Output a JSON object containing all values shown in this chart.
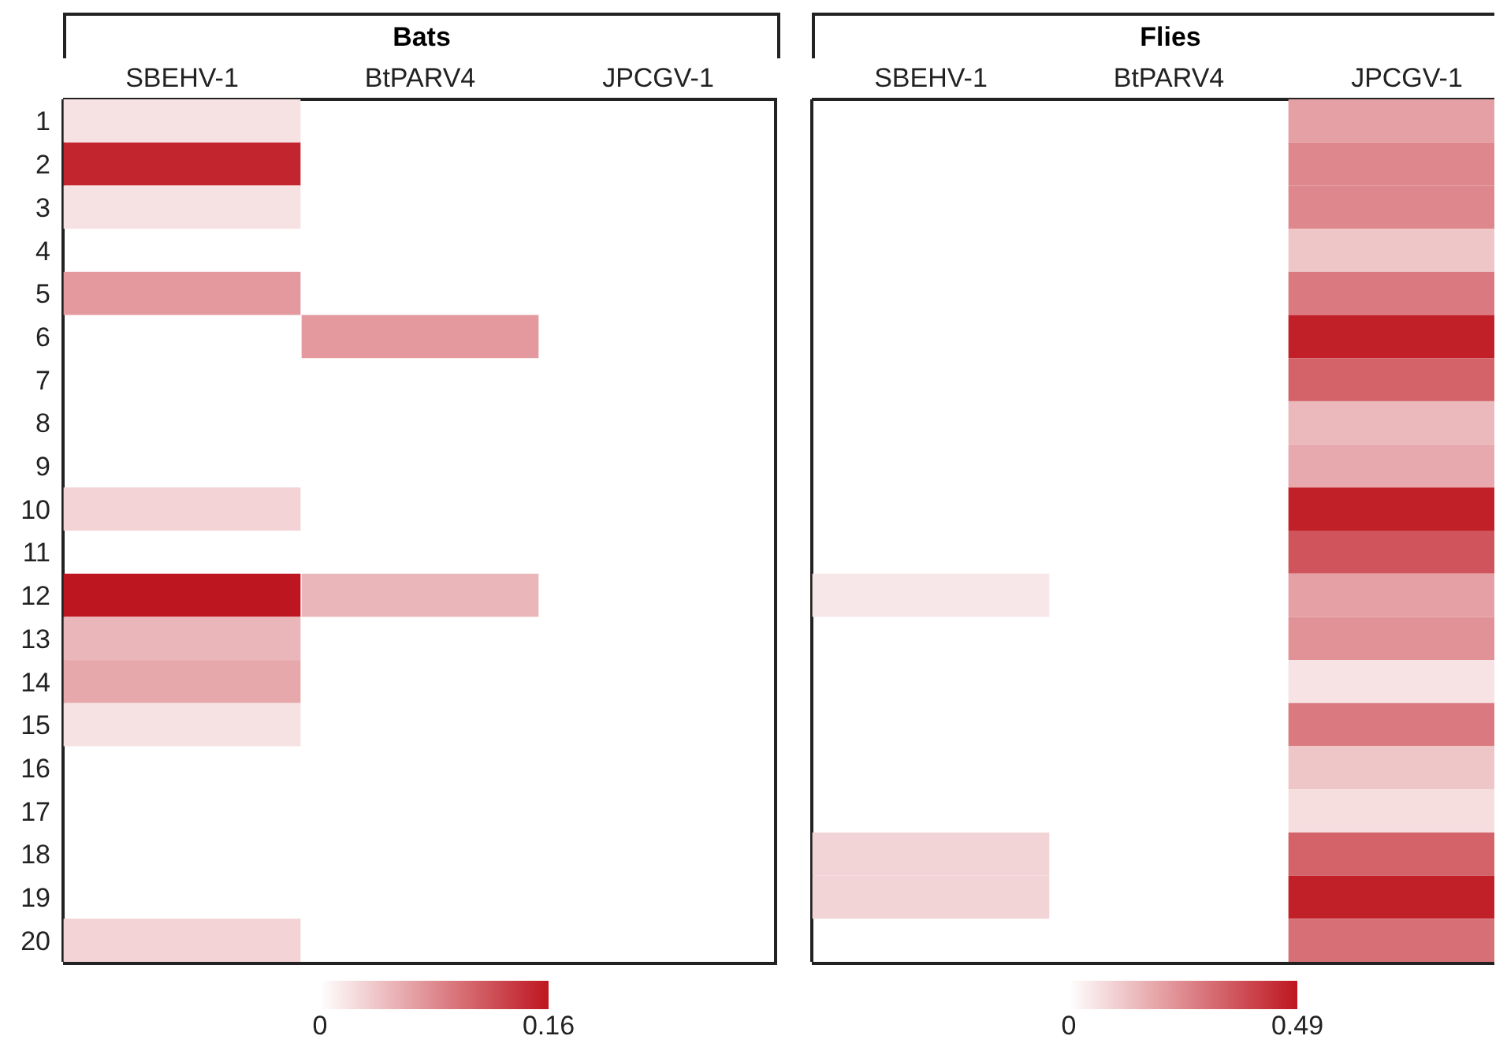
{
  "chart_data": [
    {
      "type": "heatmap",
      "title": "Bats",
      "categories": [
        "SBEHV-1",
        "BtPARV4",
        "JPCGV-1"
      ],
      "y_categories": [
        "1",
        "2",
        "3",
        "4",
        "5",
        "6",
        "7",
        "8",
        "9",
        "10",
        "11",
        "12",
        "13",
        "14",
        "15",
        "16",
        "17",
        "18",
        "19",
        "20"
      ],
      "cells": [
        [
          0.02,
          null,
          null
        ],
        [
          0.15,
          null,
          null
        ],
        [
          0.02,
          null,
          null
        ],
        [
          null,
          null,
          null
        ],
        [
          0.07,
          null,
          null
        ],
        [
          null,
          0.07,
          null
        ],
        [
          null,
          null,
          null
        ],
        [
          null,
          null,
          null
        ],
        [
          null,
          null,
          null
        ],
        [
          0.03,
          null,
          null
        ],
        [
          null,
          null,
          null
        ],
        [
          0.16,
          0.05,
          null
        ],
        [
          0.05,
          null,
          null
        ],
        [
          0.06,
          null,
          null
        ],
        [
          0.02,
          null,
          null
        ],
        [
          null,
          null,
          null
        ],
        [
          null,
          null,
          null
        ],
        [
          null,
          null,
          null
        ],
        [
          null,
          null,
          null
        ],
        [
          0.03,
          null,
          null
        ]
      ],
      "clim": [
        0,
        0.16
      ],
      "cticks": [
        0,
        0.16
      ]
    },
    {
      "type": "heatmap",
      "title": "Flies",
      "categories": [
        "SBEHV-1",
        "BtPARV4",
        "JPCGV-1"
      ],
      "y_categories": [
        "1",
        "2",
        "3",
        "4",
        "5",
        "6",
        "7",
        "8",
        "9",
        "10",
        "11",
        "12",
        "13",
        "14",
        "15",
        "16",
        "17",
        "18",
        "19",
        "20"
      ],
      "tick_labels": "x",
      "cells": [
        [
          null,
          null,
          0.2
        ],
        [
          null,
          null,
          0.25
        ],
        [
          null,
          null,
          0.25
        ],
        [
          null,
          null,
          0.12
        ],
        [
          null,
          null,
          0.28
        ],
        [
          null,
          null,
          0.47
        ],
        [
          null,
          null,
          0.33
        ],
        [
          null,
          null,
          0.15
        ],
        [
          null,
          null,
          0.18
        ],
        [
          null,
          null,
          0.47
        ],
        [
          null,
          null,
          0.36
        ],
        [
          0.05,
          null,
          0.2
        ],
        [
          null,
          null,
          0.23
        ],
        [
          null,
          null,
          0.06
        ],
        [
          null,
          null,
          0.28
        ],
        [
          null,
          null,
          0.12
        ],
        [
          null,
          null,
          0.07
        ],
        [
          0.09,
          null,
          0.33
        ],
        [
          0.09,
          null,
          0.47
        ],
        [
          null,
          null,
          0.3
        ]
      ],
      "clim": [
        0,
        0.49
      ],
      "cticks": [
        0,
        0.49
      ]
    }
  ]
}
